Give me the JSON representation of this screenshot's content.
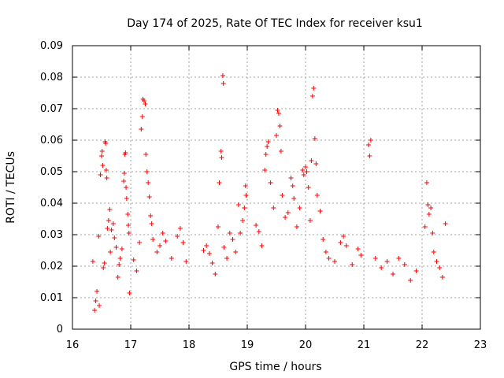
{
  "chart_data": {
    "type": "scatter",
    "title": "Day 174 of 2025, Rate Of TEC Index for receiver ksu1",
    "xlabel": "GPS time / hours",
    "ylabel": "ROTI / TECUs",
    "xlim": [
      16,
      23
    ],
    "ylim": [
      0,
      0.09
    ],
    "x_ticks": [
      "16",
      "17",
      "18",
      "19",
      "20",
      "21",
      "22",
      "23"
    ],
    "y_ticks": [
      "0",
      "0.01",
      "0.02",
      "0.03",
      "0.04",
      "0.05",
      "0.06",
      "0.07",
      "0.08",
      "0.09"
    ],
    "grid": true,
    "marker": "plus",
    "color": "#ff0000",
    "series": [
      {
        "points": [
          [
            16.35,
            0.0215
          ],
          [
            16.38,
            0.006
          ],
          [
            16.4,
            0.009
          ],
          [
            16.42,
            0.012
          ],
          [
            16.45,
            0.0295
          ],
          [
            16.46,
            0.0075
          ],
          [
            16.48,
            0.049
          ],
          [
            16.5,
            0.055
          ],
          [
            16.51,
            0.0565
          ],
          [
            16.52,
            0.052
          ],
          [
            16.53,
            0.0195
          ],
          [
            16.55,
            0.021
          ],
          [
            16.56,
            0.0595
          ],
          [
            16.57,
            0.059
          ],
          [
            16.58,
            0.0505
          ],
          [
            16.59,
            0.048
          ],
          [
            16.6,
            0.032
          ],
          [
            16.62,
            0.0345
          ],
          [
            16.64,
            0.038
          ],
          [
            16.65,
            0.0245
          ],
          [
            16.67,
            0.0315
          ],
          [
            16.7,
            0.0335
          ],
          [
            16.72,
            0.029
          ],
          [
            16.75,
            0.026
          ],
          [
            16.78,
            0.0165
          ],
          [
            16.8,
            0.0205
          ],
          [
            16.82,
            0.0225
          ],
          [
            16.85,
            0.0255
          ],
          [
            16.88,
            0.047
          ],
          [
            16.89,
            0.0495
          ],
          [
            16.9,
            0.0555
          ],
          [
            16.91,
            0.056
          ],
          [
            16.92,
            0.045
          ],
          [
            16.93,
            0.0415
          ],
          [
            16.95,
            0.0365
          ],
          [
            16.96,
            0.033
          ],
          [
            16.97,
            0.0305
          ],
          [
            16.98,
            0.0115
          ],
          [
            17.05,
            0.022
          ],
          [
            17.1,
            0.0185
          ],
          [
            17.15,
            0.0275
          ],
          [
            17.18,
            0.0635
          ],
          [
            17.2,
            0.0675
          ],
          [
            17.21,
            0.073
          ],
          [
            17.23,
            0.0725
          ],
          [
            17.25,
            0.0715
          ],
          [
            17.26,
            0.0555
          ],
          [
            17.28,
            0.05
          ],
          [
            17.3,
            0.0465
          ],
          [
            17.32,
            0.042
          ],
          [
            17.34,
            0.036
          ],
          [
            17.36,
            0.0335
          ],
          [
            17.38,
            0.0285
          ],
          [
            17.45,
            0.0245
          ],
          [
            17.5,
            0.0265
          ],
          [
            17.55,
            0.0305
          ],
          [
            17.6,
            0.028
          ],
          [
            17.7,
            0.0225
          ],
          [
            17.8,
            0.0295
          ],
          [
            17.85,
            0.032
          ],
          [
            17.9,
            0.0275
          ],
          [
            17.95,
            0.0215
          ],
          [
            18.25,
            0.025
          ],
          [
            18.3,
            0.0265
          ],
          [
            18.35,
            0.024
          ],
          [
            18.4,
            0.021
          ],
          [
            18.45,
            0.0175
          ],
          [
            18.5,
            0.0325
          ],
          [
            18.52,
            0.0465
          ],
          [
            18.55,
            0.0565
          ],
          [
            18.56,
            0.0545
          ],
          [
            18.58,
            0.0805
          ],
          [
            18.59,
            0.078
          ],
          [
            18.6,
            0.026
          ],
          [
            18.65,
            0.0225
          ],
          [
            18.7,
            0.0305
          ],
          [
            18.75,
            0.0285
          ],
          [
            18.8,
            0.0245
          ],
          [
            18.85,
            0.0395
          ],
          [
            18.88,
            0.0305
          ],
          [
            18.92,
            0.0345
          ],
          [
            18.95,
            0.0385
          ],
          [
            18.97,
            0.0455
          ],
          [
            18.98,
            0.0425
          ],
          [
            19.15,
            0.033
          ],
          [
            19.2,
            0.031
          ],
          [
            19.25,
            0.0265
          ],
          [
            19.3,
            0.0505
          ],
          [
            19.32,
            0.0555
          ],
          [
            19.34,
            0.058
          ],
          [
            19.36,
            0.0595
          ],
          [
            19.4,
            0.0465
          ],
          [
            19.45,
            0.0385
          ],
          [
            19.5,
            0.0615
          ],
          [
            19.52,
            0.0695
          ],
          [
            19.54,
            0.0685
          ],
          [
            19.56,
            0.0645
          ],
          [
            19.58,
            0.0565
          ],
          [
            19.6,
            0.0425
          ],
          [
            19.65,
            0.0355
          ],
          [
            19.7,
            0.037
          ],
          [
            19.75,
            0.048
          ],
          [
            19.78,
            0.0455
          ],
          [
            19.8,
            0.0415
          ],
          [
            19.85,
            0.0325
          ],
          [
            19.9,
            0.0385
          ],
          [
            19.95,
            0.0505
          ],
          [
            19.97,
            0.049
          ],
          [
            20.0,
            0.0515
          ],
          [
            20.02,
            0.05
          ],
          [
            20.05,
            0.045
          ],
          [
            20.08,
            0.0345
          ],
          [
            20.1,
            0.0535
          ],
          [
            20.12,
            0.074
          ],
          [
            20.14,
            0.0765
          ],
          [
            20.16,
            0.0605
          ],
          [
            20.18,
            0.0525
          ],
          [
            20.2,
            0.0425
          ],
          [
            20.25,
            0.0375
          ],
          [
            20.3,
            0.0285
          ],
          [
            20.35,
            0.0245
          ],
          [
            20.4,
            0.0225
          ],
          [
            20.5,
            0.0215
          ],
          [
            20.6,
            0.0275
          ],
          [
            20.65,
            0.0295
          ],
          [
            20.7,
            0.0265
          ],
          [
            20.8,
            0.0205
          ],
          [
            20.9,
            0.0255
          ],
          [
            20.95,
            0.0235
          ],
          [
            21.08,
            0.0585
          ],
          [
            21.1,
            0.055
          ],
          [
            21.12,
            0.06
          ],
          [
            21.2,
            0.0225
          ],
          [
            21.3,
            0.0195
          ],
          [
            21.4,
            0.0215
          ],
          [
            21.5,
            0.0175
          ],
          [
            21.6,
            0.0225
          ],
          [
            21.7,
            0.0205
          ],
          [
            21.8,
            0.0155
          ],
          [
            21.9,
            0.0185
          ],
          [
            22.05,
            0.0325
          ],
          [
            22.08,
            0.0465
          ],
          [
            22.1,
            0.0395
          ],
          [
            22.12,
            0.0365
          ],
          [
            22.15,
            0.0385
          ],
          [
            22.18,
            0.0305
          ],
          [
            22.2,
            0.0245
          ],
          [
            22.25,
            0.0215
          ],
          [
            22.3,
            0.0195
          ],
          [
            22.35,
            0.0165
          ],
          [
            22.4,
            0.0335
          ]
        ]
      }
    ]
  }
}
